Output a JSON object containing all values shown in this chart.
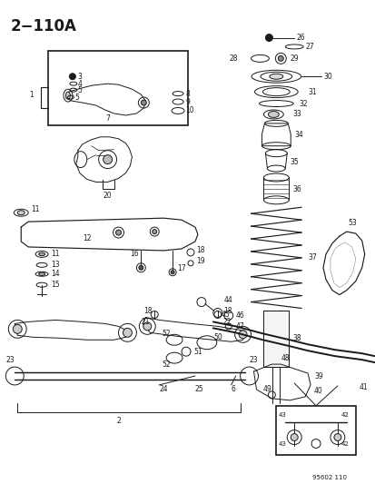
{
  "title": "2−110A",
  "background_color": "#ffffff",
  "line_color": "#1a1a1a",
  "diagram_label": "95602 110",
  "figsize": [
    4.14,
    5.33
  ],
  "dpi": 100
}
